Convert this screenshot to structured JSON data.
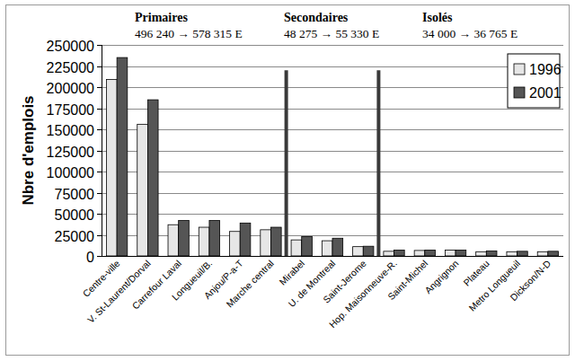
{
  "chart_data": {
    "type": "bar",
    "y_label": "Nbre d'emplois",
    "annotations": [
      {
        "label": "Primaires",
        "text": "496 240 → 578 315 E"
      },
      {
        "label": "Secondaires",
        "text": "48 275 → 55 330 E"
      },
      {
        "label": "Isolés",
        "text": "34 000 → 36 765 E"
      }
    ],
    "categories": [
      "Centre-ville",
      "V. St-Laurent/Dorval",
      "Carrefour Laval",
      "Longueuil/B.",
      "Anjou/P-a-T",
      "Marche central",
      "Mirabel",
      "U. de Montreal",
      "Saint-Jerome",
      "Hop. Maisonneuve-R.",
      "Saint-Michel",
      "Angrignon",
      "Plateau",
      "Metro Longueuil",
      "Dickson/N-D"
    ],
    "series": [
      {
        "name": "1996",
        "color": "#e6e6e6",
        "values": [
          209000,
          156000,
          37000,
          34000,
          29000,
          31000,
          19000,
          18000,
          11000,
          5500,
          6500,
          7000,
          5000,
          5000,
          5000
        ]
      },
      {
        "name": "2001",
        "color": "#555555",
        "values": [
          235000,
          185000,
          42000,
          42000,
          39000,
          34000,
          23000,
          21000,
          11500,
          7000,
          7000,
          7000,
          6000,
          5500,
          5500
        ]
      }
    ],
    "ylim": [
      0,
      250000
    ],
    "yticks": [
      0,
      25000,
      50000,
      75000,
      100000,
      125000,
      150000,
      175000,
      200000,
      225000,
      250000
    ],
    "grid": true,
    "legend": "top-right"
  }
}
